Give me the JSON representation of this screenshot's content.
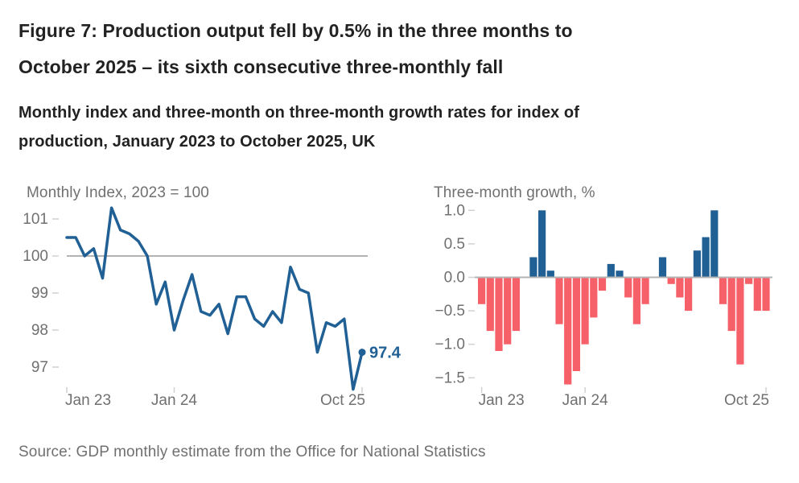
{
  "header": {
    "title_line1": "Figure 7: Production output fell by 0.5% in the three months to",
    "title_line2": "October 2025 – its sixth consecutive three-monthly fall",
    "subtitle_line1": "Monthly index and three-month on three-month growth rates for index of",
    "subtitle_line2": "production, January 2023 to October 2025, UK"
  },
  "source_note": "Source: GDP monthly estimate from the Office for National Statistics",
  "colors": {
    "title_text": "#222222",
    "axis_text": "#707071",
    "line_blue": "#206095",
    "bar_positive_blue": "#206095",
    "bar_negative_red": "#f66068",
    "reference_line_gray": "#b3b3b3",
    "tick_gray": "#d1d1d1"
  },
  "chart_data": [
    {
      "type": "line",
      "title": "Monthly Index, 2023 = 100",
      "months": [
        "Jan 23",
        "Feb 23",
        "Mar 23",
        "Apr 23",
        "May 23",
        "Jun 23",
        "Jul 23",
        "Aug 23",
        "Sep 23",
        "Oct 23",
        "Nov 23",
        "Dec 23",
        "Jan 24",
        "Feb 24",
        "Mar 24",
        "Apr 24",
        "May 24",
        "Jun 24",
        "Jul 24",
        "Aug 24",
        "Sep 24",
        "Oct 24",
        "Nov 24",
        "Dec 24",
        "Jan 25",
        "Feb 25",
        "Mar 25",
        "Apr 25",
        "May 25",
        "Jun 25",
        "Jul 25",
        "Aug 25",
        "Sep 25",
        "Oct 25"
      ],
      "values": [
        100.5,
        100.5,
        100.0,
        100.2,
        99.4,
        101.3,
        100.7,
        100.6,
        100.4,
        100.0,
        98.7,
        99.3,
        98.0,
        98.8,
        99.5,
        98.5,
        98.4,
        98.7,
        97.9,
        98.9,
        98.9,
        98.3,
        98.1,
        98.5,
        98.2,
        99.7,
        99.1,
        99.0,
        97.4,
        98.2,
        98.1,
        98.3,
        96.4,
        97.4
      ],
      "y_ticks": [
        {
          "value": 101,
          "label": "101"
        },
        {
          "value": 100,
          "label": "100"
        },
        {
          "value": 99,
          "label": "99"
        },
        {
          "value": 98,
          "label": "98"
        },
        {
          "value": 97,
          "label": "97"
        }
      ],
      "x_ticks": [
        {
          "index": 0,
          "label": "Jan 23"
        },
        {
          "index": 12,
          "label": "Jan 24"
        },
        {
          "index": 33,
          "label": "Oct 25"
        }
      ],
      "reference_line_value": 100,
      "end_point_label": "97.4",
      "ylim": [
        96.2,
        101.5
      ],
      "grid": "reference line at 100 only",
      "legend": "none"
    },
    {
      "type": "bar",
      "title": "Three-month growth, %",
      "months": [
        "Jan 23",
        "Feb 23",
        "Mar 23",
        "Apr 23",
        "May 23",
        "Jun 23",
        "Jul 23",
        "Aug 23",
        "Sep 23",
        "Oct 23",
        "Nov 23",
        "Dec 23",
        "Jan 24",
        "Feb 24",
        "Mar 24",
        "Apr 24",
        "May 24",
        "Jun 24",
        "Jul 24",
        "Aug 24",
        "Sep 24",
        "Oct 24",
        "Nov 24",
        "Dec 24",
        "Jan 25",
        "Feb 25",
        "Mar 25",
        "Apr 25",
        "May 25",
        "Jun 25",
        "Jul 25",
        "Aug 25",
        "Sep 25",
        "Oct 25"
      ],
      "values": [
        -0.4,
        -0.8,
        -1.1,
        -1.0,
        -0.8,
        0.0,
        0.3,
        1.0,
        0.1,
        -0.7,
        -1.6,
        -1.4,
        -1.0,
        -0.6,
        -0.2,
        0.2,
        0.1,
        -0.3,
        -0.7,
        -0.4,
        0.0,
        0.3,
        -0.1,
        -0.3,
        -0.5,
        0.4,
        0.6,
        1.0,
        -0.4,
        -0.8,
        -1.3,
        -0.1,
        -0.5,
        -0.5
      ],
      "y_ticks": [
        {
          "value": 1.0,
          "label": "1.0"
        },
        {
          "value": 0.5,
          "label": "0.5"
        },
        {
          "value": 0.0,
          "label": "0.0"
        },
        {
          "value": -0.5,
          "label": "−0.5"
        },
        {
          "value": -1.0,
          "label": "−1.0"
        },
        {
          "value": -1.5,
          "label": "−1.5"
        }
      ],
      "x_ticks": [
        {
          "index": 0,
          "label": "Jan 23"
        },
        {
          "index": 12,
          "label": "Jan 24"
        },
        {
          "index": 33,
          "label": "Oct 25"
        }
      ],
      "zero_line": 0,
      "ylim": [
        -1.7,
        1.1
      ],
      "grid": "zero line only",
      "legend": "none"
    }
  ]
}
